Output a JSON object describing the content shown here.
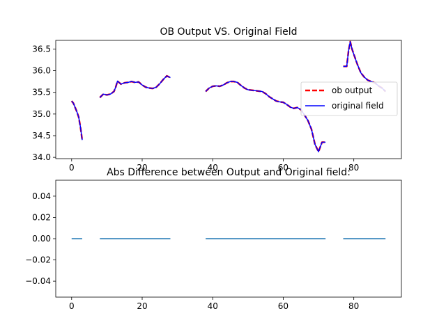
{
  "chart_data": [
    {
      "type": "line",
      "title": "OB Output VS. Original Field",
      "xlabel": "",
      "ylabel": "",
      "xlim": [
        -4.5,
        93.5
      ],
      "ylim": [
        33.97,
        36.7
      ],
      "xticks": [
        0,
        20,
        40,
        60,
        80
      ],
      "yticks": [
        34.0,
        34.5,
        35.0,
        35.5,
        36.0,
        36.5
      ],
      "xtick_labels": [
        "0",
        "20",
        "40",
        "60",
        "80"
      ],
      "ytick_labels": [
        "34.0",
        "34.5",
        "35.0",
        "35.5",
        "36.0",
        "36.5"
      ],
      "legend_position": "center-right",
      "legend": [
        "ob output",
        "original field"
      ],
      "series": [
        {
          "name": "ob output",
          "color": "#ff0000",
          "style": "dashed",
          "segments": [
            {
              "x": [
                0,
                0.5,
                1,
                1.5,
                2,
                2.5,
                3
              ],
              "y": [
                35.3,
                35.25,
                35.15,
                35.05,
                34.93,
                34.7,
                34.4
              ]
            },
            {
              "x": [
                8,
                9,
                10,
                11,
                12,
                12.5,
                13,
                14,
                15,
                16,
                17,
                18,
                19,
                20,
                21,
                22,
                23,
                24,
                25,
                26,
                27,
                28
              ],
              "y": [
                35.38,
                35.46,
                35.44,
                35.46,
                35.52,
                35.62,
                35.76,
                35.69,
                35.72,
                35.73,
                35.75,
                35.73,
                35.74,
                35.67,
                35.62,
                35.6,
                35.59,
                35.62,
                35.7,
                35.8,
                35.88,
                35.84
              ]
            },
            {
              "x": [
                38,
                39,
                40,
                41,
                42,
                43,
                44,
                45,
                46,
                47,
                48,
                49,
                50,
                51,
                52,
                53,
                54,
                55,
                56,
                57,
                58,
                59,
                60,
                61,
                62,
                63,
                64,
                65,
                66,
                67,
                68,
                69,
                70,
                71,
                72
              ],
              "y": [
                35.52,
                35.6,
                35.64,
                35.65,
                35.64,
                35.67,
                35.72,
                35.75,
                35.75,
                35.73,
                35.66,
                35.6,
                35.56,
                35.55,
                35.54,
                35.53,
                35.52,
                35.47,
                35.4,
                35.35,
                35.3,
                35.28,
                35.27,
                35.22,
                35.16,
                35.13,
                35.15,
                35.1,
                34.98,
                34.85,
                34.65,
                34.3,
                34.13,
                34.35,
                34.35
              ]
            },
            {
              "x": [
                77,
                78,
                78.5,
                79,
                79.5,
                80,
                81,
                82,
                83,
                84,
                85,
                86,
                87,
                88,
                89
              ],
              "y": [
                36.1,
                36.1,
                36.45,
                36.67,
                36.5,
                36.38,
                36.15,
                35.95,
                35.85,
                35.78,
                35.75,
                35.72,
                35.65,
                35.6,
                35.52
              ]
            }
          ]
        },
        {
          "name": "original field",
          "color": "#0000ff",
          "style": "solid",
          "segments": [
            {
              "x": [
                0,
                0.5,
                1,
                1.5,
                2,
                2.5,
                3
              ],
              "y": [
                35.3,
                35.25,
                35.15,
                35.05,
                34.93,
                34.7,
                34.4
              ]
            },
            {
              "x": [
                8,
                9,
                10,
                11,
                12,
                12.5,
                13,
                14,
                15,
                16,
                17,
                18,
                19,
                20,
                21,
                22,
                23,
                24,
                25,
                26,
                27,
                28
              ],
              "y": [
                35.38,
                35.46,
                35.44,
                35.46,
                35.52,
                35.62,
                35.76,
                35.69,
                35.72,
                35.73,
                35.75,
                35.73,
                35.74,
                35.67,
                35.62,
                35.6,
                35.59,
                35.62,
                35.7,
                35.8,
                35.88,
                35.84
              ]
            },
            {
              "x": [
                38,
                39,
                40,
                41,
                42,
                43,
                44,
                45,
                46,
                47,
                48,
                49,
                50,
                51,
                52,
                53,
                54,
                55,
                56,
                57,
                58,
                59,
                60,
                61,
                62,
                63,
                64,
                65,
                66,
                67,
                68,
                69,
                70,
                71,
                72
              ],
              "y": [
                35.52,
                35.6,
                35.64,
                35.65,
                35.64,
                35.67,
                35.72,
                35.75,
                35.75,
                35.73,
                35.66,
                35.6,
                35.56,
                35.55,
                35.54,
                35.53,
                35.52,
                35.47,
                35.4,
                35.35,
                35.3,
                35.28,
                35.27,
                35.22,
                35.16,
                35.13,
                35.15,
                35.1,
                34.98,
                34.85,
                34.65,
                34.3,
                34.13,
                34.35,
                34.35
              ]
            },
            {
              "x": [
                77,
                78,
                78.5,
                79,
                79.5,
                80,
                81,
                82,
                83,
                84,
                85,
                86,
                87,
                88,
                89
              ],
              "y": [
                36.1,
                36.1,
                36.45,
                36.67,
                36.5,
                36.38,
                36.15,
                35.95,
                35.85,
                35.78,
                35.75,
                35.72,
                35.65,
                35.6,
                35.52
              ]
            }
          ]
        }
      ]
    },
    {
      "type": "line",
      "title": "Abs Difference between Output and Original field:",
      "xlabel": "",
      "ylabel": "",
      "xlim": [
        -4.5,
        93.5
      ],
      "ylim": [
        -0.055,
        0.055
      ],
      "xticks": [
        0,
        20,
        40,
        60,
        80
      ],
      "yticks": [
        -0.04,
        -0.02,
        0.0,
        0.02,
        0.04
      ],
      "xtick_labels": [
        "0",
        "20",
        "40",
        "60",
        "80"
      ],
      "ytick_labels": [
        "−0.04",
        "−0.02",
        "0.00",
        "0.02",
        "0.04"
      ],
      "series": [
        {
          "name": "abs difference",
          "color": "#1f77b4",
          "style": "solid",
          "segments": [
            {
              "x": [
                0,
                3
              ],
              "y": [
                0,
                0
              ]
            },
            {
              "x": [
                8,
                28
              ],
              "y": [
                0,
                0
              ]
            },
            {
              "x": [
                38,
                72
              ],
              "y": [
                0,
                0
              ]
            },
            {
              "x": [
                77,
                89
              ],
              "y": [
                0,
                0
              ]
            }
          ]
        }
      ]
    }
  ]
}
